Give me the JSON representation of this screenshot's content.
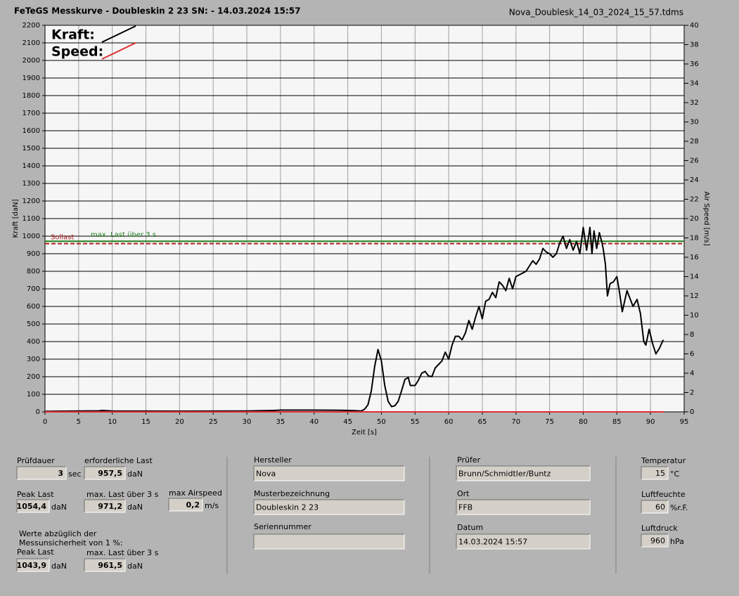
{
  "header": {
    "title": "FeTeGS Messkurve - Doubleskin 2 23  SN:  - 14.03.2024 15:57",
    "file": "Nova_Doublesk_14_03_2024_15_57.tdms"
  },
  "chart_data": {
    "type": "line",
    "x_label": "Zeit [s]",
    "y_label": "Kraft [daN]",
    "y2_label": "Air Speed [m/s]",
    "xlim": [
      0,
      95
    ],
    "xticks": [
      0,
      5,
      10,
      15,
      20,
      25,
      30,
      35,
      40,
      45,
      50,
      55,
      60,
      65,
      70,
      75,
      80,
      85,
      90,
      95
    ],
    "ylim": [
      0,
      2200
    ],
    "yticks": [
      0,
      100,
      200,
      300,
      400,
      500,
      600,
      700,
      800,
      900,
      1000,
      1100,
      1200,
      1300,
      1400,
      1500,
      1600,
      1700,
      1800,
      1900,
      2000,
      2100,
      2200
    ],
    "y2lim": [
      0,
      40
    ],
    "y2ticks": [
      0,
      2,
      4,
      6,
      8,
      10,
      12,
      14,
      16,
      18,
      20,
      22,
      24,
      26,
      28,
      30,
      32,
      34,
      36,
      38,
      40
    ],
    "grid": true,
    "series": [
      {
        "name": "Kraft:",
        "color": "#000000",
        "x": [
          0,
          8,
          8.5,
          10,
          20,
          30,
          34,
          35,
          40,
          44,
          46,
          47,
          47.5,
          48,
          48.5,
          49,
          49.5,
          50,
          50.5,
          51,
          51.5,
          52,
          52.5,
          53,
          53.5,
          54,
          54.3,
          55,
          55.5,
          56,
          56.5,
          57,
          57.5,
          58,
          58.5,
          59,
          59.5,
          60,
          60.5,
          61,
          61.5,
          62,
          62.5,
          63,
          63.5,
          64,
          64.5,
          65,
          65.5,
          66,
          66.5,
          67,
          67.5,
          68,
          68.5,
          69,
          69.5,
          70,
          70.5,
          71,
          71.5,
          72,
          72.5,
          73,
          73.5,
          74,
          74.5,
          75,
          75.5,
          76,
          76.5,
          77,
          77.5,
          78,
          78.5,
          79,
          79.5,
          80,
          80.5,
          81,
          81.3,
          81.6,
          82,
          82.4,
          82.8,
          83,
          83.3,
          83.6,
          84,
          84.5,
          85,
          85.4,
          85.8,
          86.5,
          87.4,
          88,
          88.5,
          89,
          89.3,
          89.8,
          90.3,
          90.8,
          91.3,
          91.9
        ],
        "values": [
          3,
          6,
          8,
          5,
          4,
          5,
          8,
          10,
          10,
          9,
          7,
          5,
          15,
          40,
          120,
          260,
          355,
          290,
          150,
          60,
          30,
          35,
          60,
          120,
          185,
          195,
          150,
          150,
          180,
          220,
          230,
          205,
          200,
          250,
          270,
          290,
          340,
          300,
          380,
          430,
          430,
          410,
          450,
          520,
          470,
          540,
          600,
          530,
          630,
          640,
          680,
          650,
          740,
          720,
          690,
          760,
          700,
          770,
          780,
          790,
          800,
          830,
          860,
          840,
          870,
          930,
          910,
          900,
          880,
          900,
          960,
          1000,
          930,
          980,
          920,
          970,
          900,
          1050,
          920,
          1050,
          900,
          1030,
          930,
          1020,
          960,
          920,
          840,
          660,
          730,
          740,
          770,
          680,
          570,
          690,
          600,
          640,
          560,
          400,
          380,
          470,
          390,
          330,
          360,
          410
        ]
      },
      {
        "name": "Speed:",
        "color": "#e03030",
        "axis": "y2",
        "x": [
          0,
          92
        ],
        "values": [
          0,
          0
        ]
      }
    ],
    "reference_lines": [
      {
        "name": "Sollast",
        "value": 957.5,
        "color": "#b02020",
        "style": "dashed"
      },
      {
        "name": "max. Last über  3 s",
        "value": 971.2,
        "color": "#208020",
        "style": "solid"
      }
    ]
  },
  "panel": {
    "fields": [
      {
        "label": "Prüfdauer",
        "value": "3",
        "unit": "sec"
      },
      {
        "label": "erforderliche Last",
        "value": "957,5",
        "unit": "daN"
      },
      {
        "label": "Peak Last",
        "value": "1054,4",
        "unit": "daN"
      },
      {
        "label": "max. Last über  3 s",
        "value": "971,2",
        "unit": "daN"
      },
      {
        "label": "max Airspeed",
        "value": "0,2",
        "unit": "m/s"
      },
      {
        "label": "Peak Last",
        "value": "1043,9",
        "unit": "daN"
      },
      {
        "label": "max. Last über  3 s",
        "value": "961,5",
        "unit": "daN"
      },
      {
        "label": "Hersteller",
        "value": "Nova"
      },
      {
        "label": "Musterbezeichnung",
        "value": "Doubleskin 2 23"
      },
      {
        "label": "Seriennummer"
      },
      {
        "label": "Prüfer",
        "value": "Brunn/Schmidtler/Buntz"
      },
      {
        "label": "Ort",
        "value": "FFB"
      },
      {
        "label": "Datum",
        "value": "14.03.2024 15:57"
      },
      {
        "label": "Temperatur",
        "value": "15",
        "unit": "°C"
      },
      {
        "label": "Luftfeuchte",
        "value": "60",
        "unit": "%r.F."
      },
      {
        "label": "Luftdruck",
        "value": "960",
        "unit": "hPa"
      }
    ],
    "note": [
      "Werte abzüglich der",
      "Messunsicherheit von 1  %:"
    ]
  }
}
